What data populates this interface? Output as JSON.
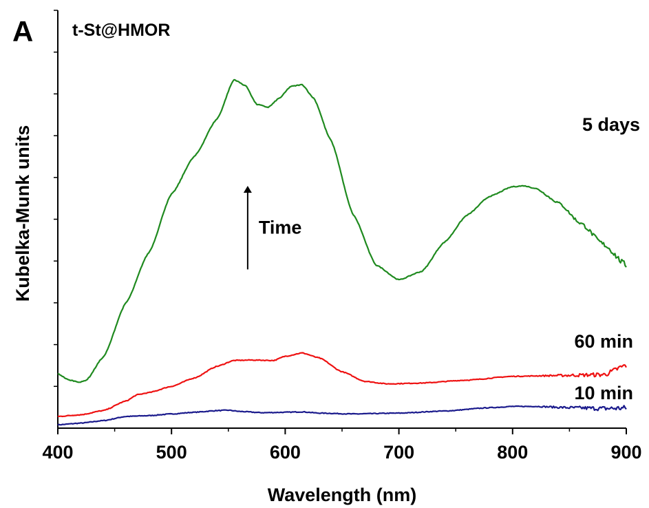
{
  "panel_label": "A",
  "chart_data": {
    "type": "line",
    "title": "t-St@HMOR",
    "title_color": "#1a1a8c",
    "xlabel": "Wavelength (nm)",
    "ylabel": "Kubelka-Munk units",
    "xlim": [
      400,
      900
    ],
    "ylim": [
      0,
      1
    ],
    "xticks": [
      400,
      500,
      600,
      700,
      800,
      900
    ],
    "y_tick_count": 10,
    "y_tick_labels_shown": false,
    "grid": false,
    "annotation": {
      "text": "Time",
      "arrow": "up",
      "x": 567,
      "y_from": 0.38,
      "y_to": 0.58
    },
    "series": [
      {
        "name": "10 min",
        "color": "#1a1a8c",
        "x": [
          400,
          420,
          440,
          460,
          480,
          500,
          520,
          540,
          550,
          560,
          580,
          600,
          615,
          630,
          660,
          700,
          740,
          780,
          800,
          820,
          850,
          880,
          900
        ],
        "y": [
          0.008,
          0.012,
          0.018,
          0.028,
          0.03,
          0.034,
          0.038,
          0.042,
          0.043,
          0.04,
          0.037,
          0.038,
          0.039,
          0.036,
          0.034,
          0.036,
          0.041,
          0.049,
          0.052,
          0.052,
          0.049,
          0.047,
          0.048
        ]
      },
      {
        "name": "60 min",
        "color": "#ee1111",
        "x": [
          400,
          420,
          440,
          460,
          470,
          480,
          500,
          520,
          540,
          555,
          570,
          590,
          600,
          615,
          630,
          650,
          670,
          690,
          720,
          760,
          800,
          840,
          880,
          900
        ],
        "y": [
          0.028,
          0.032,
          0.042,
          0.065,
          0.08,
          0.085,
          0.1,
          0.12,
          0.148,
          0.162,
          0.163,
          0.162,
          0.172,
          0.18,
          0.168,
          0.135,
          0.112,
          0.106,
          0.108,
          0.115,
          0.124,
          0.126,
          0.128,
          0.15
        ]
      },
      {
        "name": "5 days",
        "color": "#1f8a1f",
        "x": [
          400,
          410,
          420,
          425,
          440,
          460,
          480,
          500,
          520,
          540,
          555,
          565,
          575,
          585,
          595,
          605,
          615,
          625,
          640,
          660,
          680,
          700,
          720,
          740,
          760,
          780,
          800,
          810,
          820,
          840,
          860,
          880,
          900
        ],
        "y": [
          0.13,
          0.115,
          0.11,
          0.115,
          0.17,
          0.3,
          0.42,
          0.56,
          0.65,
          0.74,
          0.834,
          0.82,
          0.775,
          0.768,
          0.79,
          0.818,
          0.822,
          0.79,
          0.69,
          0.51,
          0.39,
          0.355,
          0.375,
          0.445,
          0.51,
          0.555,
          0.578,
          0.58,
          0.574,
          0.54,
          0.49,
          0.44,
          0.39
        ]
      }
    ]
  }
}
